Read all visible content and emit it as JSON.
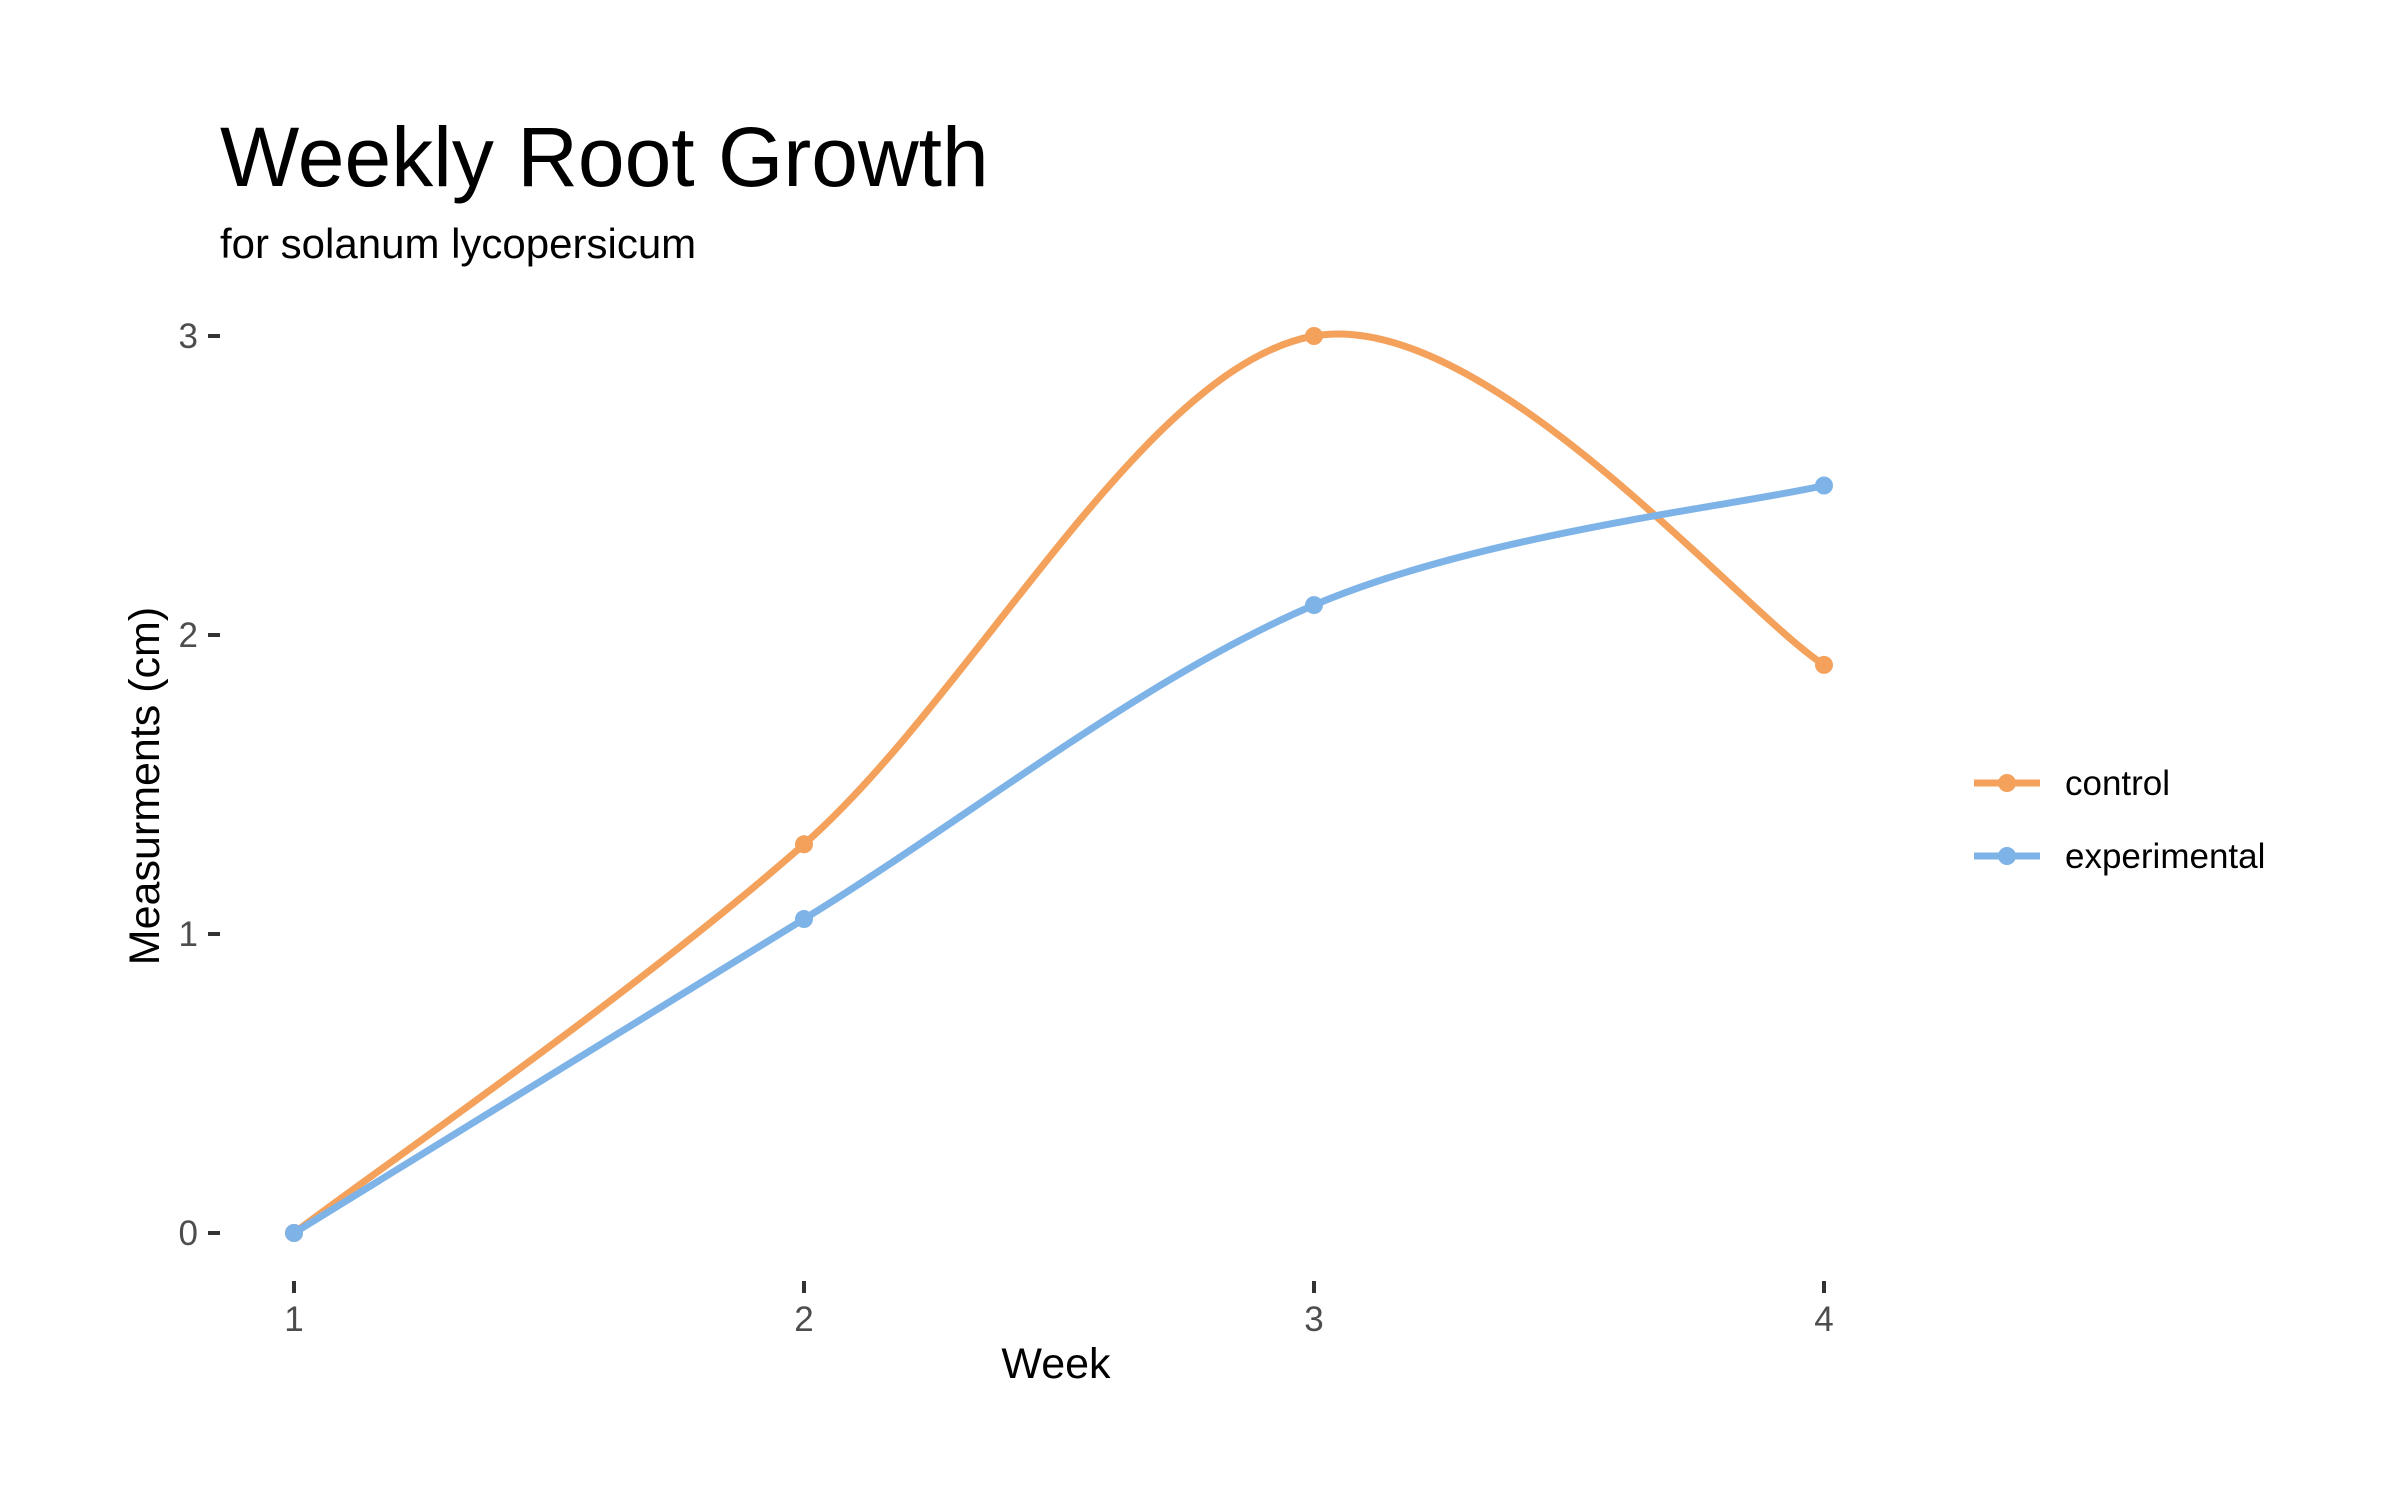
{
  "chart_data": {
    "type": "line",
    "title": "Weekly Root Growth",
    "subtitle": "for  solanum lycopersicum",
    "xlabel": "Week",
    "ylabel": "Measurments (cm)",
    "x": [
      1,
      2,
      3,
      4
    ],
    "x_ticks": [
      "1",
      "2",
      "3",
      "4"
    ],
    "y_ticks": [
      "0",
      "1",
      "2",
      "3"
    ],
    "xlim": [
      1,
      4
    ],
    "ylim": [
      0,
      3
    ],
    "grid": false,
    "smoothed": true,
    "legend_position": "right",
    "series": [
      {
        "name": "control",
        "values": [
          0,
          1.3,
          3.0,
          1.9
        ],
        "color": "#F4A15C"
      },
      {
        "name": "experimental",
        "values": [
          0,
          1.05,
          2.1,
          2.5
        ],
        "color": "#7EB3E8"
      }
    ]
  }
}
